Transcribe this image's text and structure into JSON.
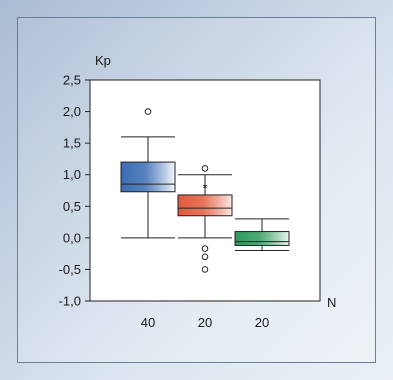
{
  "chart_data": {
    "type": "box",
    "ylabel": "Kp",
    "xlabel": "N",
    "ylim": [
      -1.0,
      2.5
    ],
    "yticks": [
      "2,5",
      "2,0",
      "1,5",
      "1,0",
      "0,5",
      "0,0",
      "-0,5",
      "-1,0"
    ],
    "ytick_values": [
      2.5,
      2.0,
      1.5,
      1.0,
      0.5,
      0.0,
      -0.5,
      -1.0
    ],
    "categories": [
      "40",
      "20",
      "20"
    ],
    "grid": false,
    "boxes": [
      {
        "whisker_low": 0.0,
        "q1": 0.73,
        "median": 0.85,
        "q3": 1.2,
        "whisker_high": 1.6,
        "outliers": [
          2.0
        ],
        "extremes": [],
        "color_dark": "#3a6cb3",
        "color_light": "#f4f8fc"
      },
      {
        "whisker_low": 0.0,
        "q1": 0.35,
        "median": 0.47,
        "q3": 0.68,
        "whisker_high": 1.0,
        "outliers": [
          1.1,
          -0.17,
          -0.3,
          -0.5
        ],
        "extremes": [
          0.83
        ],
        "color_dark": "#e05a3c",
        "color_light": "#fbe9e4"
      },
      {
        "whisker_low": -0.2,
        "q1": -0.12,
        "median": -0.06,
        "q3": 0.1,
        "whisker_high": 0.3,
        "outliers": [],
        "extremes": [],
        "color_dark": "#2f9a5c",
        "color_light": "#e9f5ee"
      }
    ],
    "extreme_symbol": "*",
    "outlier_symbol": "o"
  }
}
